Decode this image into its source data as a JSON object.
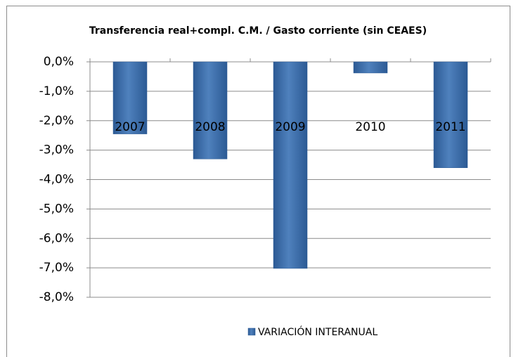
{
  "chart_data": {
    "type": "bar",
    "title": "Transferencia real+compl. C.M. / Gasto corriente (sin CEAES)",
    "categories": [
      "2007",
      "2008",
      "2009",
      "2010",
      "2011"
    ],
    "series": [
      {
        "name": "VARIACIÓN INTERANUAL",
        "color": "#4f81bd",
        "values": [
          -2.45,
          -3.3,
          -7.02,
          -0.38,
          -3.6
        ]
      }
    ],
    "ylim": [
      -8,
      0
    ],
    "yticks": [
      {
        "value": 0,
        "label": "0,0%"
      },
      {
        "value": -1,
        "label": "-1,0%"
      },
      {
        "value": -2,
        "label": "-2,0%"
      },
      {
        "value": -3,
        "label": "-3,0%"
      },
      {
        "value": -4,
        "label": "-4,0%"
      },
      {
        "value": -5,
        "label": "-5,0%"
      },
      {
        "value": -6,
        "label": "-6,0%"
      },
      {
        "value": -7,
        "label": "-7,0%"
      },
      {
        "value": -8,
        "label": "-8,0%"
      }
    ],
    "grid": true,
    "legend": "bottom"
  }
}
